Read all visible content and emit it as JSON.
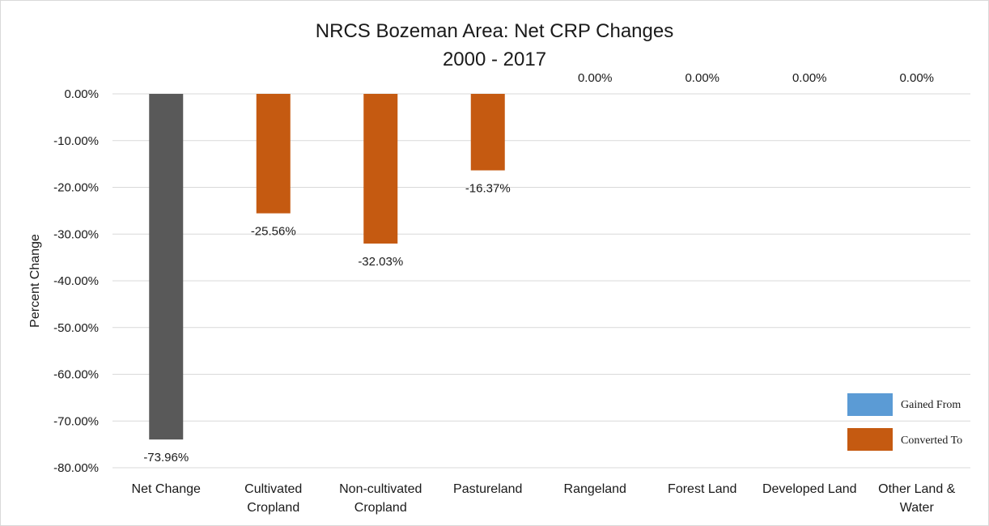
{
  "chart_data": {
    "type": "bar",
    "title": "NRCS Bozeman Area: Net CRP Changes",
    "subtitle": "2000 - 2017",
    "xlabel": "",
    "ylabel": "Percent Change",
    "ylim": [
      -80,
      0
    ],
    "yticks": [
      0,
      -10,
      -20,
      -30,
      -40,
      -50,
      -60,
      -70,
      -80
    ],
    "ytick_labels": [
      "0.00%",
      "-10.00%",
      "-20.00%",
      "-30.00%",
      "-40.00%",
      "-50.00%",
      "-60.00%",
      "-70.00%",
      "-80.00%"
    ],
    "grid": true,
    "legend_position": "bottom-right",
    "categories": [
      [
        "Net Change"
      ],
      [
        "Cultivated",
        "Cropland"
      ],
      [
        "Non-cultivated",
        "Cropland"
      ],
      [
        "Pastureland"
      ],
      [
        "Rangeland"
      ],
      [
        "Forest Land"
      ],
      [
        "Developed Land"
      ],
      [
        "Other Land &",
        "Water"
      ]
    ],
    "values": [
      -73.96,
      -25.56,
      -32.03,
      -16.37,
      0,
      0,
      0,
      0
    ],
    "data_labels": [
      "-73.96%",
      "-25.56%",
      "-32.03%",
      "-16.37%",
      "0.00%",
      "0.00%",
      "0.00%",
      "0.00%"
    ],
    "bar_colors": [
      "#595959",
      "#c55a11",
      "#c55a11",
      "#c55a11",
      "#c55a11",
      "#c55a11",
      "#c55a11",
      "#c55a11"
    ],
    "series": [
      {
        "name": "Gained From",
        "color": "#5b9bd5"
      },
      {
        "name": "Converted To",
        "color": "#c55a11"
      }
    ],
    "gridline_color": "#d9d9d9"
  }
}
